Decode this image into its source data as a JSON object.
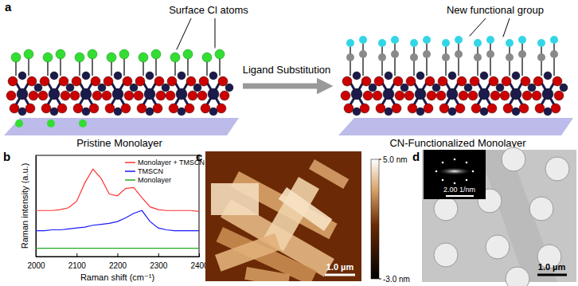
{
  "panel_labels": [
    "a",
    "b",
    "c",
    "d"
  ],
  "diagram": {
    "left_caption": "Pristine Monolayer",
    "right_caption": "CN-Functionalized Monolayer",
    "left_annotation": "Surface Cl atoms",
    "right_annotation": "New functional group",
    "arrow_label": "Ligand Substitution"
  },
  "chart_data": {
    "type": "line",
    "x": [
      2000,
      2020,
      2040,
      2060,
      2080,
      2100,
      2120,
      2140,
      2160,
      2180,
      2200,
      2220,
      2240,
      2260,
      2280,
      2300,
      2320,
      2340,
      2360,
      2380,
      2400
    ],
    "xlim": [
      2000,
      2400
    ],
    "xticks": [
      2000,
      2100,
      2200,
      2300,
      2400
    ],
    "ylim": [
      0,
      110
    ],
    "x_label": "Raman shift (cm⁻¹)",
    "y_label": "Raman intensity (a.u.)",
    "tick_labels": "x",
    "legend": "top-right",
    "series": [
      {
        "name": "Monolayer + TMSCN",
        "color": "#ff3333",
        "values": [
          50,
          50,
          50,
          51,
          53,
          60,
          80,
          95,
          85,
          68,
          66,
          74,
          75,
          64,
          54,
          51,
          50,
          50,
          50,
          50,
          49
        ]
      },
      {
        "name": "TMSCN",
        "color": "#1a1aff",
        "values": [
          28,
          28,
          29,
          29,
          30,
          31,
          32,
          34,
          35,
          36,
          38,
          42,
          47,
          50,
          38,
          31,
          29,
          28,
          28,
          28,
          28
        ]
      },
      {
        "name": "Monolayer",
        "color": "#22aa22",
        "values": [
          9,
          9,
          9,
          9,
          9,
          9,
          9,
          9,
          9,
          9,
          9,
          9,
          9,
          9,
          9,
          9,
          9,
          9,
          9,
          9,
          9
        ]
      }
    ]
  },
  "afm_image": {
    "scale_bar": "1.0 µm",
    "colorbar_range": [
      -3,
      5
    ],
    "colorbar_ticks": [
      {
        "value": 5,
        "label": "5.0 nm"
      },
      {
        "value": -3,
        "label": "-3.0 nm"
      }
    ]
  },
  "tem_image": {
    "scale_bar": "1.0 µm",
    "inset_scale_bar": "2.00 1/nm"
  }
}
